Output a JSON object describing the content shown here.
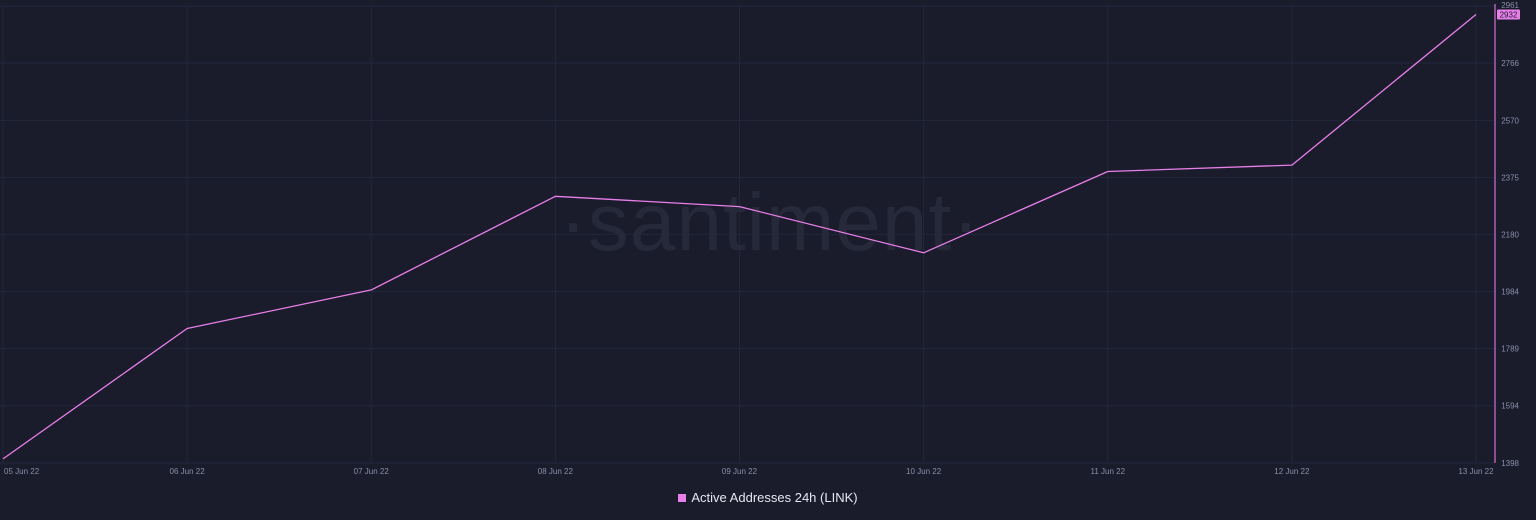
{
  "watermark": "·santiment·",
  "colors": {
    "background": "#1a1c2c",
    "series": "#e87ee8",
    "grid": "#23263a",
    "axis": "#d46fd4"
  },
  "chart_data": {
    "type": "line",
    "title": "",
    "xlabel": "",
    "ylabel": "",
    "x": [
      "05 Jun 22",
      "06 Jun 22",
      "07 Jun 22",
      "08 Jun 22",
      "09 Jun 22",
      "10 Jun 22",
      "11 Jun 22",
      "12 Jun 22",
      "13 Jun 22"
    ],
    "y_ticks": [
      1398,
      1594,
      1789,
      1984,
      2180,
      2375,
      2570,
      2766,
      2961
    ],
    "ylim": [
      1398,
      2961
    ],
    "y_axis_position": "right",
    "grid": true,
    "legend_position": "bottom-center",
    "last_value_label": "2932",
    "series": [
      {
        "name": "Active Addresses 24h (LINK)",
        "color": "#e87ee8",
        "values": [
          1412,
          1858,
          1990,
          2310,
          2275,
          2117,
          2395,
          2417,
          2932
        ]
      }
    ]
  }
}
